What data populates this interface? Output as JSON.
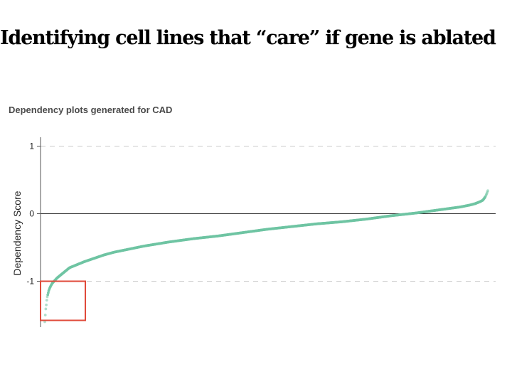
{
  "slide": {
    "title": "Identifying cell lines that “care” if gene is ablated"
  },
  "chart_data": {
    "type": "scatter",
    "title": "Dependency plots generated for CAD",
    "xlabel": "",
    "ylabel": "Dependency Score",
    "ylim": [
      -1.6,
      1.1
    ],
    "yticks": [
      1,
      0,
      -1
    ],
    "grid": "dashed horizontal at ticks",
    "zero_line": true,
    "x_description": "cell lines sorted by dependency score",
    "highlight_box": {
      "y_from": -1,
      "y_to": -1.6,
      "color": "#e04a3a"
    },
    "series": [
      {
        "color": "#6fc4a3",
        "rank": [
          0,
          1,
          2,
          3,
          4,
          5,
          6,
          7,
          8,
          9,
          10,
          12,
          15,
          20,
          25,
          30,
          40,
          50,
          60,
          70,
          80,
          100,
          120,
          140,
          160,
          180,
          200,
          250,
          300,
          350,
          400,
          450,
          500,
          550,
          600,
          650,
          700,
          750,
          800,
          840,
          860,
          870,
          880,
          885,
          890,
          893,
          895
        ],
        "values": [
          -1.6,
          -1.5,
          -1.41,
          -1.35,
          -1.28,
          -1.23,
          -1.2,
          -1.17,
          -1.14,
          -1.12,
          -1.1,
          -1.07,
          -1.03,
          -0.99,
          -0.95,
          -0.92,
          -0.86,
          -0.8,
          -0.77,
          -0.74,
          -0.71,
          -0.66,
          -0.61,
          -0.57,
          -0.54,
          -0.51,
          -0.48,
          -0.42,
          -0.37,
          -0.33,
          -0.28,
          -0.23,
          -0.19,
          -0.15,
          -0.12,
          -0.08,
          -0.03,
          0.01,
          0.06,
          0.1,
          0.13,
          0.15,
          0.18,
          0.2,
          0.25,
          0.3,
          0.34
        ]
      }
    ]
  }
}
